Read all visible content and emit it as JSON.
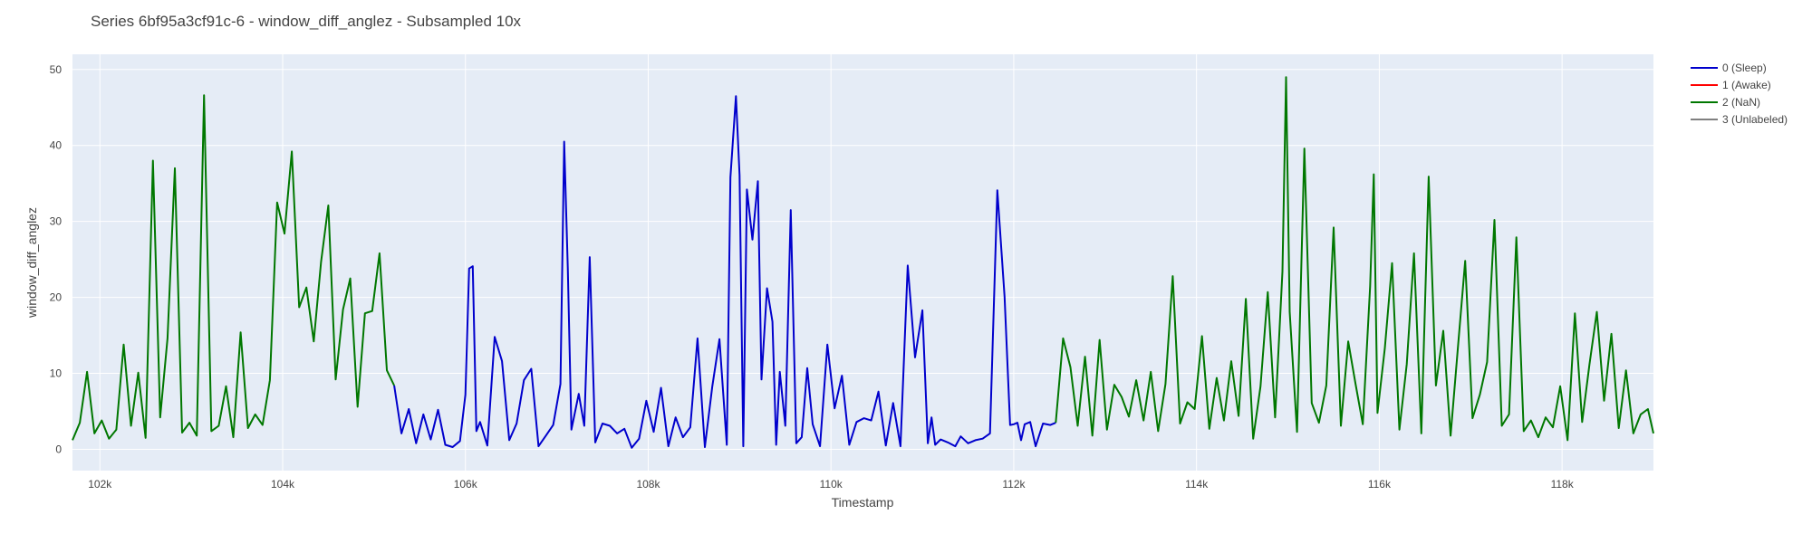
{
  "chart_data": {
    "type": "line",
    "title": "Series 6bf95a3cf91c-6 - window_diff_anglez - Subsampled 10x",
    "xlabel": "Timestamp",
    "ylabel": "window_diff_anglez",
    "xlim": [
      101700,
      119000
    ],
    "ylim": [
      -2.8,
      52
    ],
    "x_ticks": [
      102000,
      104000,
      106000,
      108000,
      110000,
      112000,
      114000,
      116000,
      118000
    ],
    "x_tick_labels": [
      "102k",
      "104k",
      "106k",
      "108k",
      "110k",
      "112k",
      "114k",
      "116k",
      "118k"
    ],
    "y_ticks": [
      0,
      10,
      20,
      30,
      40,
      50
    ],
    "y_tick_labels": [
      "0",
      "10",
      "20",
      "30",
      "40",
      "50"
    ],
    "grid": true,
    "legend_position": "top-right",
    "colors": {
      "plot_bg": "#e5ecf6",
      "grid": "#ffffff"
    },
    "legend": [
      {
        "name": "0 (Sleep)",
        "color": "#0000cc"
      },
      {
        "name": "1 (Awake)",
        "color": "#ff0000"
      },
      {
        "name": "2 (NaN)",
        "color": "#007700"
      },
      {
        "name": "3 (Unlabeled)",
        "color": "#808080"
      }
    ],
    "series": [
      {
        "name": "2 (NaN)",
        "color": "#007700",
        "x": [
          101700,
          101780,
          101860,
          101940,
          102020,
          102100,
          102180,
          102260,
          102340,
          102420,
          102500,
          102580,
          102660,
          102740,
          102820,
          102900,
          102980,
          103060,
          103140,
          103220,
          103300,
          103380,
          103460,
          103540,
          103620,
          103700,
          103780,
          103860,
          103940,
          104020,
          104100,
          104180,
          104260,
          104340,
          104420,
          104500,
          104580,
          104660,
          104740,
          104820,
          104900,
          104980,
          105060,
          105140,
          105220
        ],
        "y": [
          1.2,
          3.5,
          10.2,
          2.1,
          3.8,
          1.4,
          2.6,
          13.8,
          3.1,
          10.1,
          1.5,
          38,
          4.2,
          14.6,
          37,
          2.2,
          3.5,
          1.8,
          46.6,
          2.4,
          3.1,
          8.3,
          1.6,
          15.4,
          2.8,
          4.6,
          3.2,
          9.1,
          32.5,
          28.4,
          39.2,
          18.7,
          21.3,
          14.2,
          24.7,
          32.1,
          9.2,
          18.4,
          22.5,
          5.6,
          17.9,
          18.2,
          25.8,
          10.4,
          8.4
        ]
      },
      {
        "name": "0 (Sleep)",
        "color": "#0000cc",
        "x": [
          105220,
          105300,
          105380,
          105460,
          105540,
          105620,
          105700,
          105780,
          105860,
          105940,
          106000,
          106040,
          106080,
          106120,
          106160,
          106240,
          106320,
          106400,
          106480,
          106560,
          106640,
          106720,
          106800,
          106880,
          106960,
          107040,
          107080,
          107120,
          107160,
          107240,
          107300,
          107360,
          107420,
          107500,
          107580,
          107660,
          107740,
          107820,
          107900,
          107980,
          108060,
          108140,
          108220,
          108300,
          108380,
          108460,
          108540,
          108620,
          108700,
          108780,
          108860,
          108900,
          108960,
          109000,
          109040,
          109080,
          109140,
          109200,
          109240,
          109300,
          109360,
          109400,
          109440,
          109500,
          109560,
          109620,
          109680,
          109740,
          109800,
          109880,
          109960,
          110040,
          110120,
          110200,
          110280,
          110360,
          110440,
          110520,
          110600,
          110680,
          110760,
          110840,
          110920,
          111000,
          111060,
          111100,
          111140,
          111200,
          111280,
          111360,
          111420,
          111500,
          111580,
          111660,
          111740,
          111820,
          111900,
          111960,
          112000,
          112040,
          112080,
          112120,
          112180,
          112240,
          112320,
          112400,
          112460
        ],
        "y": [
          8.4,
          2.1,
          5.3,
          0.8,
          4.6,
          1.3,
          5.2,
          0.6,
          0.3,
          1.1,
          7.2,
          23.8,
          24.1,
          2.4,
          3.6,
          0.5,
          14.8,
          11.6,
          1.2,
          3.4,
          9.1,
          10.6,
          0.4,
          1.8,
          3.2,
          8.6,
          40.5,
          23.9,
          2.6,
          7.3,
          3.1,
          25.3,
          0.9,
          3.4,
          3.1,
          2.1,
          2.7,
          0.2,
          1.4,
          6.4,
          2.3,
          8.1,
          0.4,
          4.2,
          1.6,
          2.9,
          14.6,
          0.3,
          8.2,
          14.5,
          0.6,
          35.8,
          46.5,
          36.1,
          0.4,
          34.2,
          27.6,
          35.3,
          9.2,
          21.2,
          16.8,
          0.6,
          10.2,
          3.1,
          31.5,
          0.8,
          1.6,
          10.7,
          3.3,
          0.4,
          13.8,
          5.4,
          9.7,
          0.6,
          3.6,
          4.1,
          3.8,
          7.6,
          0.5,
          6.1,
          0.4,
          24.2,
          12.1,
          18.3,
          0.8,
          4.2,
          0.6,
          1.3,
          0.9,
          0.4,
          1.7,
          0.8,
          1.2,
          1.4,
          2.1,
          34.1,
          20.1,
          3.2,
          3.3,
          3.5,
          1.2,
          3.3,
          3.6,
          0.4,
          3.4,
          3.2,
          3.5
        ]
      },
      {
        "name": "2 (NaN)",
        "color": "#007700",
        "x": [
          112460,
          112540,
          112620,
          112700,
          112780,
          112860,
          112940,
          113020,
          113100,
          113180,
          113260,
          113340,
          113420,
          113500,
          113580,
          113660,
          113740,
          113820,
          113900,
          113980,
          114060,
          114140,
          114220,
          114300,
          114380,
          114460,
          114540,
          114620,
          114700,
          114780,
          114860,
          114940,
          114980,
          115020,
          115100,
          115180,
          115260,
          115340,
          115420,
          115500,
          115580,
          115660,
          115740,
          115820,
          115900,
          115940,
          115980,
          116060,
          116140,
          116220,
          116300,
          116380,
          116460,
          116540,
          116620,
          116700,
          116780,
          116860,
          116940,
          117020,
          117100,
          117180,
          117260,
          117340,
          117420,
          117500,
          117580,
          117660,
          117740,
          117820,
          117900,
          117980,
          118060,
          118140,
          118220,
          118300,
          118380,
          118460,
          118540,
          118620,
          118700,
          118780,
          118860,
          118940,
          119000
        ],
        "y": [
          3.5,
          14.6,
          10.8,
          3.1,
          12.2,
          1.8,
          14.4,
          2.6,
          8.5,
          6.9,
          4.3,
          9.1,
          3.8,
          10.2,
          2.4,
          8.6,
          22.8,
          3.4,
          6.2,
          5.3,
          14.9,
          2.7,
          9.4,
          3.8,
          11.6,
          4.4,
          19.8,
          1.4,
          8.3,
          20.7,
          4.2,
          23.4,
          49,
          18.1,
          2.3,
          39.6,
          6.1,
          3.5,
          8.4,
          29.2,
          3.1,
          14.2,
          8.6,
          3.3,
          21.5,
          36.2,
          4.8,
          13.3,
          24.5,
          2.6,
          11.2,
          25.8,
          2.1,
          35.9,
          8.4,
          15.6,
          1.8,
          13.3,
          24.8,
          4.1,
          7.2,
          11.5,
          30.2,
          3.1,
          4.6,
          27.9,
          2.4,
          3.8,
          1.6,
          4.2,
          2.9,
          8.3,
          1.2,
          17.9,
          3.6,
          11.2,
          18.1,
          6.4,
          15.2,
          2.8,
          10.4,
          2.1,
          4.6,
          5.3,
          2.1
        ]
      }
    ]
  }
}
